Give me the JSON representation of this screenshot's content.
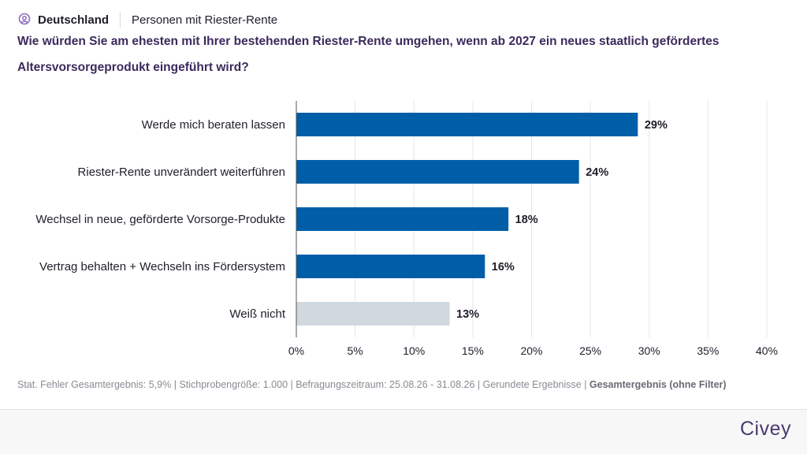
{
  "header": {
    "country": "Deutschland",
    "segment": "Personen mit Riester-Rente"
  },
  "question": "Wie würden Sie am ehesten mit Ihrer bestehenden Riester-Rente umgehen, wenn ab 2027 ein neues staatlich gefördertes Altersvorsorgeprodukt eingeführt wird?",
  "chart_data": {
    "type": "bar",
    "orientation": "horizontal",
    "categories": [
      "Werde mich beraten lassen",
      "Riester-Rente unverändert weiterführen",
      "Wechsel in neue, geförderte Vorsorge-Produkte",
      "Vertrag behalten + Wechseln ins Fördersystem",
      "Weiß nicht"
    ],
    "values": [
      29,
      24,
      18,
      16,
      13
    ],
    "value_labels": [
      "29%",
      "24%",
      "18%",
      "16%",
      "13%"
    ],
    "colors": [
      "#005ea8",
      "#005ea8",
      "#005ea8",
      "#005ea8",
      "#d0d8e0"
    ],
    "xlim": [
      0,
      40
    ],
    "xticks": [
      0,
      5,
      10,
      15,
      20,
      25,
      30,
      35,
      40
    ],
    "xtick_labels": [
      "0%",
      "5%",
      "10%",
      "15%",
      "20%",
      "25%",
      "30%",
      "35%",
      "40%"
    ],
    "grid": true
  },
  "footer": {
    "stats": "Stat. Fehler Gesamtergebnis: 5,9% | Stichprobengröße: 1.000 | Befragungszeitraum: 25.08.26 - 31.08.26 | Gerundete Ergebnisse | ",
    "filter": "Gesamtergebnis (ohne Filter)"
  },
  "brand": "Civey",
  "icons": {
    "header": "location-pin-icon"
  },
  "colors": {
    "accent": "#3b2a5c",
    "bar": "#005ea8",
    "bar_neutral": "#d0d8e0"
  }
}
